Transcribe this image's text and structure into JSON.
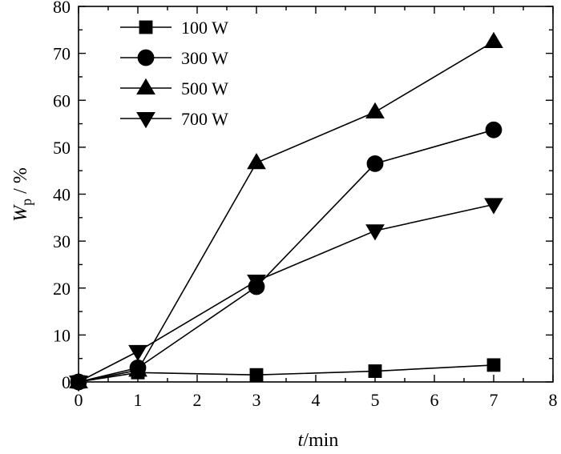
{
  "chart_data": {
    "type": "line",
    "title": "",
    "xlabel_italic": "t",
    "xlabel_rest": "/min",
    "ylabel_main": "W",
    "ylabel_sub": "p",
    "ylabel_rest": " / %",
    "xlim": [
      0,
      8
    ],
    "ylim": [
      0,
      80
    ],
    "xticks": [
      0,
      1,
      2,
      3,
      4,
      5,
      6,
      7,
      8
    ],
    "yticks": [
      0,
      10,
      20,
      30,
      40,
      50,
      60,
      70,
      80
    ],
    "legend_position": "top-left",
    "x": [
      0,
      1,
      3,
      5,
      7
    ],
    "series": [
      {
        "name": "100 W",
        "marker": "square",
        "values": [
          0,
          2,
          1.5,
          2.3,
          3.6
        ]
      },
      {
        "name": "300 W",
        "marker": "circle",
        "values": [
          0,
          3,
          20.3,
          46.5,
          53.7
        ]
      },
      {
        "name": "500 W",
        "marker": "triangle-up",
        "values": [
          0,
          2.5,
          46.7,
          57.5,
          72.5
        ]
      },
      {
        "name": "700 W",
        "marker": "triangle-down",
        "values": [
          0,
          6.5,
          21.5,
          32.2,
          37.8
        ]
      }
    ]
  }
}
